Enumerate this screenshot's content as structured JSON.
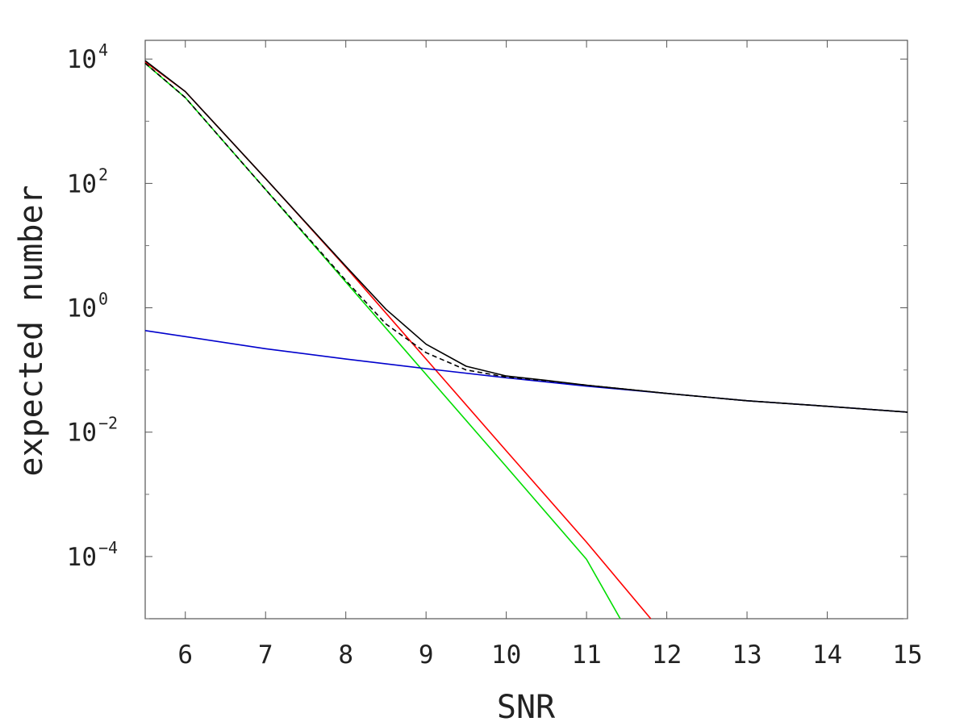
{
  "chart_data": {
    "type": "line",
    "xlabel": "SNR",
    "ylabel": "expected number",
    "xlim": [
      5.5,
      15
    ],
    "ylim": [
      1e-05,
      20000
    ],
    "yscale": "log",
    "grid": false,
    "x_ticks": [
      {
        "value": 6,
        "label": "6"
      },
      {
        "value": 7,
        "label": "7"
      },
      {
        "value": 8,
        "label": "8"
      },
      {
        "value": 9,
        "label": "9"
      },
      {
        "value": 10,
        "label": "10"
      },
      {
        "value": 11,
        "label": "11"
      },
      {
        "value": 12,
        "label": "12"
      },
      {
        "value": 13,
        "label": "13"
      },
      {
        "value": 14,
        "label": "14"
      },
      {
        "value": 15,
        "label": "15"
      }
    ],
    "y_ticks": [
      {
        "value": 10000,
        "base": "10",
        "exp": "4"
      },
      {
        "value": 100,
        "base": "10",
        "exp": "2"
      },
      {
        "value": 1,
        "base": "10",
        "exp": "0"
      },
      {
        "value": 0.01,
        "base": "10",
        "exp": "−2"
      },
      {
        "value": 0.0001,
        "base": "10",
        "exp": "−4"
      }
    ],
    "y_minor_ticks": [
      1000,
      10,
      0.1,
      0.001,
      1e-05
    ],
    "series": [
      {
        "color": "#ff0000",
        "dash": "none",
        "x": [
          5.5,
          6,
          7,
          8,
          9,
          10,
          11,
          11.8
        ],
        "y": [
          9000,
          3000,
          120,
          4.5,
          0.15,
          0.005,
          0.00017,
          1e-05
        ]
      },
      {
        "color": "#00dd00",
        "dash": "none",
        "x": [
          5.5,
          6,
          7,
          8,
          9,
          10,
          11,
          11.42
        ],
        "y": [
          8500,
          2400,
          80,
          2.6,
          0.085,
          0.0028,
          9e-05,
          1e-05
        ]
      },
      {
        "color": "#0000cc",
        "dash": "none",
        "x": [
          5.5,
          7,
          8,
          9,
          10,
          11,
          12,
          13,
          14,
          15
        ],
        "y": [
          0.43,
          0.22,
          0.15,
          0.105,
          0.075,
          0.055,
          0.042,
          0.032,
          0.026,
          0.021
        ]
      },
      {
        "color": "#000000",
        "dash": "6,4",
        "x": [
          5.5,
          6,
          7,
          8,
          8.5,
          9,
          9.5,
          10,
          10.5,
          11,
          12,
          13,
          14,
          15
        ],
        "y": [
          8600,
          2400,
          80,
          2.75,
          0.55,
          0.19,
          0.1,
          0.077,
          0.067,
          0.057,
          0.042,
          0.032,
          0.026,
          0.021
        ]
      },
      {
        "color": "#000000",
        "dash": "none",
        "x": [
          5.5,
          6,
          7,
          8,
          8.5,
          9,
          9.5,
          10,
          10.5,
          11,
          12,
          13,
          14,
          15
        ],
        "y": [
          9400,
          3000,
          120,
          4.65,
          0.95,
          0.26,
          0.115,
          0.08,
          0.068,
          0.057,
          0.042,
          0.032,
          0.026,
          0.021
        ]
      }
    ]
  }
}
